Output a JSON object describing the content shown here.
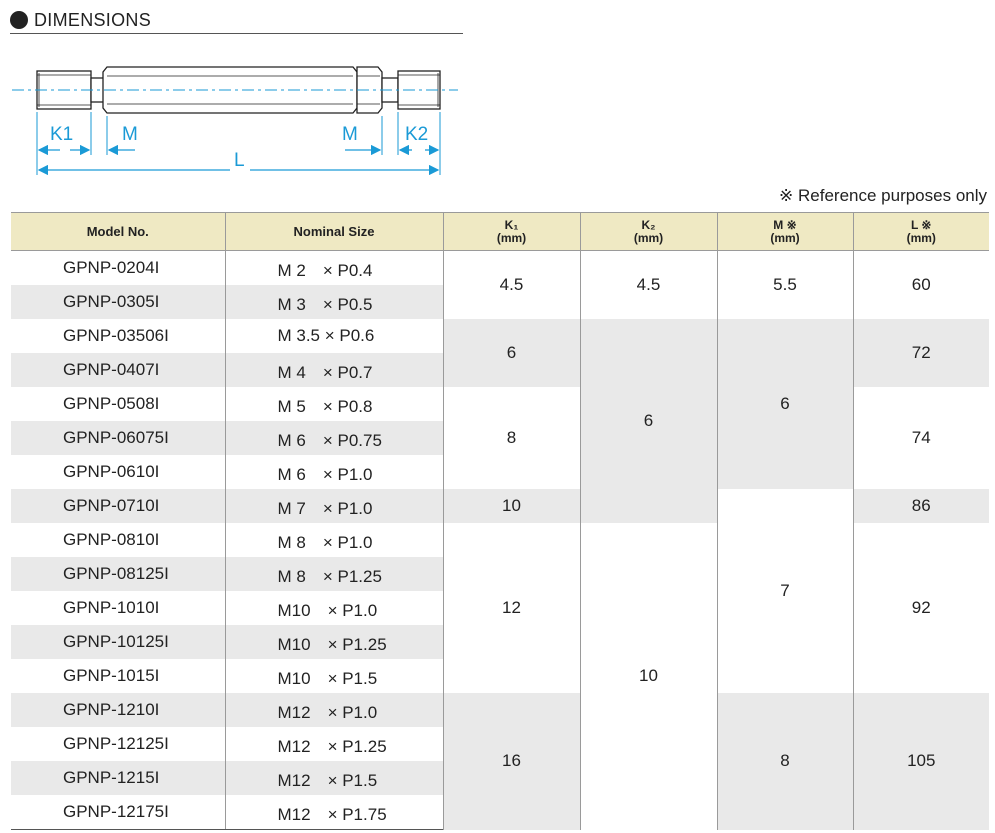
{
  "section": {
    "title": "DIMENSIONS"
  },
  "diagram": {
    "k1": "K1",
    "k2": "K2",
    "m_left": "M",
    "m_right": "M",
    "l": "L"
  },
  "note": "※ Reference purposes only",
  "table": {
    "headers": {
      "model": "Model No.",
      "size": "Nominal Size",
      "k1": "K₁",
      "k2": "K₂",
      "m": "M ※",
      "l": "L ※",
      "unit": "(mm)"
    },
    "rows": [
      {
        "model": "GPNP-0204I",
        "size": "M 2　× P0.4"
      },
      {
        "model": "GPNP-0305I",
        "size": "M 3　× P0.5"
      },
      {
        "model": "GPNP-03506I",
        "size": "M 3.5 × P0.6"
      },
      {
        "model": "GPNP-0407I",
        "size": "M 4　× P0.7"
      },
      {
        "model": "GPNP-0508I",
        "size": "M 5　× P0.8"
      },
      {
        "model": "GPNP-06075I",
        "size": "M 6　× P0.75"
      },
      {
        "model": "GPNP-0610I",
        "size": "M 6　× P1.0"
      },
      {
        "model": "GPNP-0710I",
        "size": "M 7　× P1.0"
      },
      {
        "model": "GPNP-0810I",
        "size": "M 8　× P1.0"
      },
      {
        "model": "GPNP-08125I",
        "size": "M 8　× P1.25"
      },
      {
        "model": "GPNP-1010I",
        "size": "M10　× P1.0"
      },
      {
        "model": "GPNP-10125I",
        "size": "M10　× P1.25"
      },
      {
        "model": "GPNP-1015I",
        "size": "M10　× P1.5"
      },
      {
        "model": "GPNP-1210I",
        "size": "M12　× P1.0"
      },
      {
        "model": "GPNP-12125I",
        "size": "M12　× P1.25"
      },
      {
        "model": "GPNP-1215I",
        "size": "M12　× P1.5"
      },
      {
        "model": "GPNP-12175I",
        "size": "M12　× P1.75"
      }
    ],
    "k1": [
      "4.5",
      "6",
      "8",
      "10",
      "12",
      "16"
    ],
    "k2": [
      "4.5",
      "6",
      "10"
    ],
    "m": [
      "5.5",
      "6",
      "7",
      "8"
    ],
    "l": [
      "60",
      "72",
      "74",
      "86",
      "92",
      "105"
    ]
  }
}
